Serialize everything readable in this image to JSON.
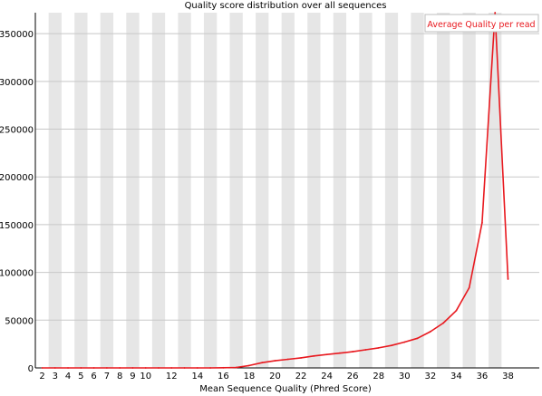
{
  "chart_data": {
    "type": "line",
    "title": "Quality score distribution over all sequences",
    "xlabel": "Mean Sequence Quality (Phred Score)",
    "ylabel": "",
    "x_tick_labels": [
      "2",
      "3",
      "4",
      "5",
      "6",
      "7",
      "8",
      "9",
      "10",
      "12",
      "14",
      "16",
      "18",
      "20",
      "22",
      "24",
      "26",
      "28",
      "30",
      "32",
      "34",
      "36",
      "38"
    ],
    "x_tick_values": [
      2,
      3,
      4,
      5,
      6,
      7,
      8,
      9,
      10,
      12,
      14,
      16,
      18,
      20,
      22,
      24,
      26,
      28,
      30,
      32,
      34,
      36,
      38
    ],
    "xlim": [
      2,
      38
    ],
    "y_ticks": [
      0,
      50000,
      100000,
      150000,
      200000,
      250000,
      300000,
      350000
    ],
    "y_tick_labels": [
      "0",
      "50000",
      "100000",
      "150000",
      "200000",
      "250000",
      "300000",
      "350000"
    ],
    "ylim": [
      0,
      372000
    ],
    "grid": "alternating vertical bands",
    "legend_position": "top-right",
    "series": [
      {
        "name": "Average Quality per read",
        "color": "#e8191f",
        "x": [
          2,
          3,
          4,
          5,
          6,
          7,
          8,
          9,
          10,
          11,
          12,
          13,
          14,
          15,
          16,
          17,
          18,
          19,
          20,
          21,
          22,
          23,
          24,
          25,
          26,
          27,
          28,
          29,
          30,
          31,
          32,
          33,
          34,
          35,
          36,
          37,
          38
        ],
        "values": [
          0,
          0,
          0,
          0,
          0,
          0,
          0,
          0,
          0,
          0,
          0,
          0,
          0,
          0,
          200,
          500,
          2500,
          5500,
          7500,
          9000,
          10500,
          12500,
          14000,
          15500,
          17000,
          19000,
          21000,
          23500,
          27000,
          31000,
          38000,
          47000,
          60000,
          84000,
          152000,
          372000,
          93000
        ]
      }
    ]
  }
}
